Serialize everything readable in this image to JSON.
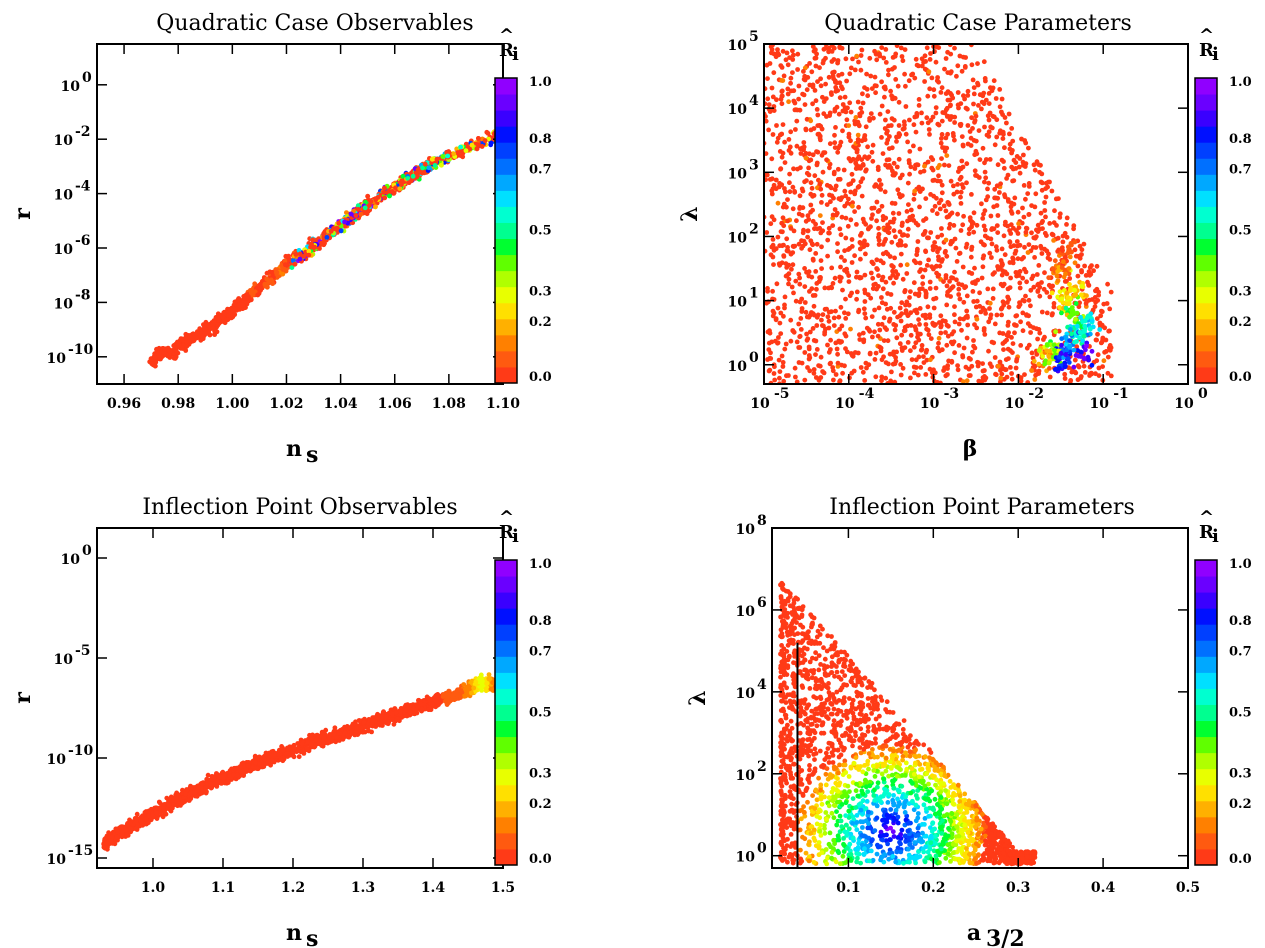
{
  "colors": {
    "scale": [
      "#ff3a17",
      "#ff5a10",
      "#ff8000",
      "#ffb000",
      "#ffe000",
      "#e8ff00",
      "#b0ff00",
      "#60ff00",
      "#00ff30",
      "#00ff90",
      "#00ffd0",
      "#00e0ff",
      "#00a8ff",
      "#0070ff",
      "#0040ff",
      "#0010ff",
      "#3a00ff",
      "#6a00ff",
      "#9000ff"
    ]
  },
  "chart_data": [
    {
      "type": "scatter",
      "title": "Quadratic Case Observables",
      "xlabel": "n",
      "xlabel_sub": "s",
      "ylabel": "r",
      "xlim": [
        0.95,
        1.1
      ],
      "ylim_log10": [
        -11,
        1.5
      ],
      "yscale": "log",
      "xticks": [
        "0.96",
        "0.98",
        "1.00",
        "1.02",
        "1.04",
        "1.06",
        "1.08",
        "1.10"
      ],
      "xtick_values": [
        0.96,
        0.98,
        1.0,
        1.02,
        1.04,
        1.06,
        1.08,
        1.1
      ],
      "ytick_exponents": [
        "0",
        "-2",
        "-4",
        "-6",
        "-8",
        "-10"
      ],
      "ytick_values_log10": [
        0,
        -2,
        -4,
        -6,
        -8,
        -10
      ],
      "colorbar": {
        "title": "R",
        "title_sub": "i",
        "ticks": [
          "1.0",
          "0.8",
          "0.7",
          "0.5",
          "0.3",
          "0.2",
          "0.0"
        ]
      },
      "points": [
        [
          0.97,
          -10.2,
          0.0
        ],
        [
          0.972,
          -10.0,
          0.0
        ],
        [
          0.975,
          -9.8,
          0.0
        ],
        [
          0.978,
          -9.9,
          0.0
        ],
        [
          0.98,
          -9.6,
          0.0
        ],
        [
          0.983,
          -9.5,
          0.0
        ],
        [
          0.985,
          -9.3,
          0.0
        ],
        [
          0.988,
          -9.2,
          0.0
        ],
        [
          0.99,
          -9.0,
          0.0
        ],
        [
          0.993,
          -8.9,
          0.0
        ],
        [
          0.995,
          -8.6,
          0.0
        ],
        [
          0.998,
          -8.5,
          0.0
        ],
        [
          1.0,
          -8.3,
          0.0
        ],
        [
          1.003,
          -8.1,
          0.0
        ],
        [
          1.005,
          -7.9,
          0.0
        ],
        [
          1.008,
          -7.6,
          0.05
        ],
        [
          1.01,
          -7.5,
          0.0
        ],
        [
          1.013,
          -7.2,
          0.05
        ],
        [
          1.015,
          -7.1,
          0.0
        ],
        [
          1.018,
          -6.8,
          0.1
        ],
        [
          1.02,
          -6.6,
          0.0
        ],
        [
          1.023,
          -6.4,
          0.1
        ],
        [
          1.025,
          -6.3,
          0.3
        ],
        [
          1.028,
          -6.1,
          0.0
        ],
        [
          1.03,
          -5.9,
          0.2
        ],
        [
          1.033,
          -5.7,
          0.05
        ],
        [
          1.035,
          -5.5,
          0.4
        ],
        [
          1.038,
          -5.3,
          0.2
        ],
        [
          1.04,
          -5.2,
          0.6
        ],
        [
          1.043,
          -4.9,
          0.1
        ],
        [
          1.045,
          -4.8,
          0.75
        ],
        [
          1.048,
          -4.6,
          0.5
        ],
        [
          1.05,
          -4.4,
          0.85
        ],
        [
          1.053,
          -4.3,
          0.3
        ],
        [
          1.055,
          -4.1,
          0.7
        ],
        [
          1.058,
          -3.9,
          0.9
        ],
        [
          1.06,
          -3.8,
          0.55
        ],
        [
          1.063,
          -3.6,
          0.8
        ],
        [
          1.065,
          -3.4,
          0.35
        ],
        [
          1.068,
          -3.3,
          0.65
        ],
        [
          1.07,
          -3.1,
          0.45
        ],
        [
          1.073,
          -3.0,
          0.2
        ],
        [
          1.075,
          -2.8,
          0.3
        ],
        [
          1.08,
          -2.6,
          0.25
        ],
        [
          1.085,
          -2.4,
          0.4
        ],
        [
          1.09,
          -2.2,
          0.2
        ],
        [
          1.095,
          -2.0,
          0.3
        ],
        [
          1.1,
          -1.8,
          0.6
        ]
      ]
    },
    {
      "type": "scatter",
      "title": "Quadratic Case Parameters",
      "xlabel": "β",
      "xlabel_sub": "",
      "ylabel": "λ",
      "xscale": "log",
      "yscale": "log",
      "xlim_log10": [
        -5,
        0
      ],
      "ylim_log10": [
        -0.3,
        5
      ],
      "xtick_exponents": [
        "-5",
        "-4",
        "-3",
        "-2",
        "-1",
        "0"
      ],
      "xtick_values_log10": [
        -5,
        -4,
        -3,
        -2,
        -1,
        0
      ],
      "ytick_exponents": [
        "0",
        "1",
        "2",
        "3",
        "4",
        "5"
      ],
      "ytick_values_log10": [
        0,
        1,
        2,
        3,
        4,
        5
      ],
      "colorbar": {
        "title": "R",
        "title_sub": "i",
        "ticks": [
          "1.0",
          "0.8",
          "0.7",
          "0.5",
          "0.3",
          "0.2",
          "0.0"
        ]
      },
      "points": [
        [
          -1.5,
          0.1,
          0.85
        ],
        [
          -1.4,
          0.3,
          0.7
        ],
        [
          -1.3,
          0.5,
          0.55
        ],
        [
          -1.35,
          0.8,
          0.4
        ],
        [
          -1.45,
          1.0,
          0.25
        ],
        [
          -1.6,
          0.2,
          0.35
        ],
        [
          -1.25,
          0.2,
          0.9
        ],
        [
          -1.2,
          0.6,
          0.6
        ],
        [
          -1.3,
          1.2,
          0.2
        ],
        [
          -1.7,
          0.1,
          0.15
        ],
        [
          -1.5,
          1.5,
          0.1
        ],
        [
          -1.4,
          1.8,
          0.05
        ]
      ]
    },
    {
      "type": "scatter",
      "title": "Inflection Point Observables",
      "xlabel": "n",
      "xlabel_sub": "s",
      "ylabel": "r",
      "xlim": [
        0.92,
        1.5
      ],
      "yscale": "log",
      "ylim_log10": [
        -15.5,
        1.5
      ],
      "xticks": [
        "1.0",
        "1.1",
        "1.2",
        "1.3",
        "1.4",
        "1.5"
      ],
      "xtick_values": [
        1.0,
        1.1,
        1.2,
        1.3,
        1.4,
        1.5
      ],
      "ytick_exponents": [
        "0",
        "-5",
        "-10",
        "-15"
      ],
      "ytick_values_log10": [
        0,
        -5,
        -10,
        -15
      ],
      "colorbar": {
        "title": "R",
        "title_sub": "i",
        "ticks": [
          "1.0",
          "0.8",
          "0.7",
          "0.5",
          "0.3",
          "0.2",
          "0.0"
        ]
      },
      "points": [
        [
          0.93,
          -14.3,
          0.0
        ],
        [
          0.96,
          -13.6,
          0.0
        ],
        [
          1.0,
          -12.8,
          0.0
        ],
        [
          1.04,
          -12.0,
          0.0
        ],
        [
          1.08,
          -11.3,
          0.0
        ],
        [
          1.12,
          -10.7,
          0.0
        ],
        [
          1.16,
          -10.1,
          0.0
        ],
        [
          1.2,
          -9.6,
          0.0
        ],
        [
          1.25,
          -9.0,
          0.0
        ],
        [
          1.3,
          -8.4,
          0.0
        ],
        [
          1.35,
          -7.8,
          0.0
        ],
        [
          1.4,
          -7.2,
          0.0
        ],
        [
          1.45,
          -6.6,
          0.1
        ],
        [
          1.47,
          -6.2,
          0.3
        ],
        [
          1.49,
          -6.4,
          0.05
        ],
        [
          1.5,
          -6.5,
          0.0
        ]
      ]
    },
    {
      "type": "scatter",
      "title": "Inflection Point Parameters",
      "xlabel": "a",
      "xlabel_sub": "3/2",
      "ylabel": "λ",
      "xlim": [
        0.01,
        0.5
      ],
      "yscale": "log",
      "ylim_log10": [
        -0.3,
        8
      ],
      "xticks": [
        "0.1",
        "0.2",
        "0.3",
        "0.4",
        "0.5"
      ],
      "xtick_values": [
        0.1,
        0.2,
        0.3,
        0.4,
        0.5
      ],
      "ytick_exponents": [
        "0",
        "2",
        "4",
        "6",
        "8"
      ],
      "ytick_values_log10": [
        0,
        2,
        4,
        6,
        8
      ],
      "vline_x": 0.04,
      "vline_top_log10": 5.2,
      "colorbar": {
        "title": "R",
        "title_sub": "i",
        "ticks": [
          "1.0",
          "0.8",
          "0.7",
          "0.5",
          "0.3",
          "0.2",
          "0.0"
        ]
      },
      "points": [
        [
          0.03,
          6.5,
          0.0
        ],
        [
          0.05,
          5.0,
          0.0
        ],
        [
          0.08,
          3.5,
          0.0
        ],
        [
          0.1,
          2.5,
          0.1
        ],
        [
          0.12,
          1.8,
          0.3
        ],
        [
          0.13,
          1.2,
          0.6
        ],
        [
          0.14,
          0.6,
          0.85
        ],
        [
          0.15,
          0.3,
          0.9
        ],
        [
          0.16,
          1.0,
          0.7
        ],
        [
          0.18,
          0.8,
          0.5
        ],
        [
          0.2,
          1.2,
          0.35
        ],
        [
          0.22,
          0.6,
          0.2
        ],
        [
          0.25,
          0.4,
          0.15
        ],
        [
          0.28,
          0.1,
          0.05
        ],
        [
          0.33,
          0.0,
          0.0
        ]
      ]
    }
  ]
}
